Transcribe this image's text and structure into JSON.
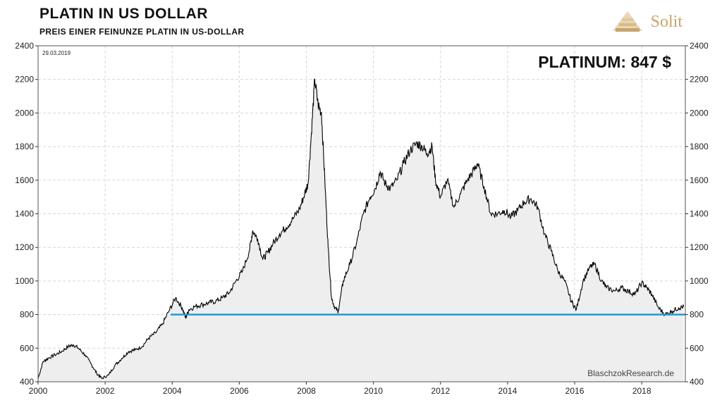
{
  "header": {
    "title": "PLATIN  IN  US DOLLAR",
    "subtitle": "PREIS EINER FEINUNZE PLATIN IN US-DOLLAR",
    "logo_text": "Solit",
    "logo_color": "#c9a46a"
  },
  "annotations": {
    "date": "29.03.2019",
    "current_price": "PLATINUM: 847 $",
    "source": "BlaschzokResearch.de"
  },
  "chart_data": {
    "type": "area",
    "xlim": [
      2000,
      2019.3
    ],
    "ylim": [
      400,
      2400
    ],
    "x_ticks": [
      "2000",
      "2002",
      "2004",
      "2006",
      "2008",
      "2010",
      "2012",
      "2014",
      "2016",
      "2018"
    ],
    "y_ticks": [
      "400",
      "600",
      "800",
      "1000",
      "1200",
      "1400",
      "1600",
      "1800",
      "2000",
      "2200",
      "2400"
    ],
    "grid": true,
    "line_color": "#000000",
    "fill_color": "#eeeeee",
    "reference_line": {
      "y": 800,
      "x_start": 2003.95,
      "x_end": 2019.3,
      "color": "#1f9ad6"
    },
    "series": [
      {
        "x": [
          2000,
          2000.15,
          2000.3,
          2000.5,
          2000.7,
          2000.9,
          2001.05,
          2001.2,
          2001.4,
          2001.6,
          2001.75,
          2001.9,
          2002.1,
          2002.3,
          2002.5,
          2002.7,
          2002.9,
          2003.1,
          2003.3,
          2003.5,
          2003.7,
          2003.9,
          2004.1,
          2004.3,
          2004.4,
          2004.5,
          2004.7,
          2004.9,
          2005.1,
          2005.3,
          2005.5,
          2005.7,
          2005.9,
          2006.1,
          2006.3,
          2006.4,
          2006.55,
          2006.7,
          2006.85,
          2007,
          2007.2,
          2007.4,
          2007.6,
          2007.8,
          2007.95,
          2008.05,
          2008.15,
          2008.25,
          2008.35,
          2008.45,
          2008.55,
          2008.65,
          2008.75,
          2008.85,
          2008.95,
          2009.1,
          2009.3,
          2009.5,
          2009.7,
          2009.9,
          2010.05,
          2010.2,
          2010.35,
          2010.5,
          2010.7,
          2010.9,
          2011.1,
          2011.3,
          2011.45,
          2011.6,
          2011.75,
          2011.85,
          2012,
          2012.2,
          2012.4,
          2012.6,
          2012.8,
          2013,
          2013.1,
          2013.3,
          2013.5,
          2013.7,
          2013.9,
          2014.1,
          2014.3,
          2014.5,
          2014.7,
          2014.9,
          2015.1,
          2015.3,
          2015.5,
          2015.7,
          2015.9,
          2016.05,
          2016.25,
          2016.45,
          2016.6,
          2016.8,
          2016.95,
          2017.2,
          2017.4,
          2017.6,
          2017.8,
          2018,
          2018.15,
          2018.3,
          2018.5,
          2018.7,
          2018.9,
          2019.1,
          2019.25
        ],
        "y": [
          420,
          520,
          540,
          560,
          580,
          610,
          620,
          600,
          560,
          500,
          450,
          420,
          440,
          500,
          540,
          580,
          590,
          610,
          660,
          690,
          740,
          820,
          900,
          840,
          780,
          830,
          850,
          860,
          870,
          880,
          900,
          930,
          1000,
          1060,
          1180,
          1300,
          1250,
          1130,
          1170,
          1220,
          1280,
          1320,
          1370,
          1430,
          1520,
          1580,
          1880,
          2200,
          2050,
          2000,
          1600,
          1200,
          900,
          840,
          820,
          1000,
          1100,
          1230,
          1400,
          1500,
          1550,
          1650,
          1580,
          1550,
          1600,
          1700,
          1780,
          1820,
          1800,
          1760,
          1800,
          1600,
          1500,
          1600,
          1440,
          1520,
          1600,
          1660,
          1700,
          1560,
          1400,
          1400,
          1420,
          1380,
          1420,
          1470,
          1490,
          1440,
          1280,
          1180,
          1060,
          1000,
          880,
          830,
          1000,
          1080,
          1100,
          1000,
          960,
          940,
          960,
          940,
          920,
          990,
          960,
          920,
          840,
          800,
          820,
          840,
          847
        ]
      }
    ]
  }
}
